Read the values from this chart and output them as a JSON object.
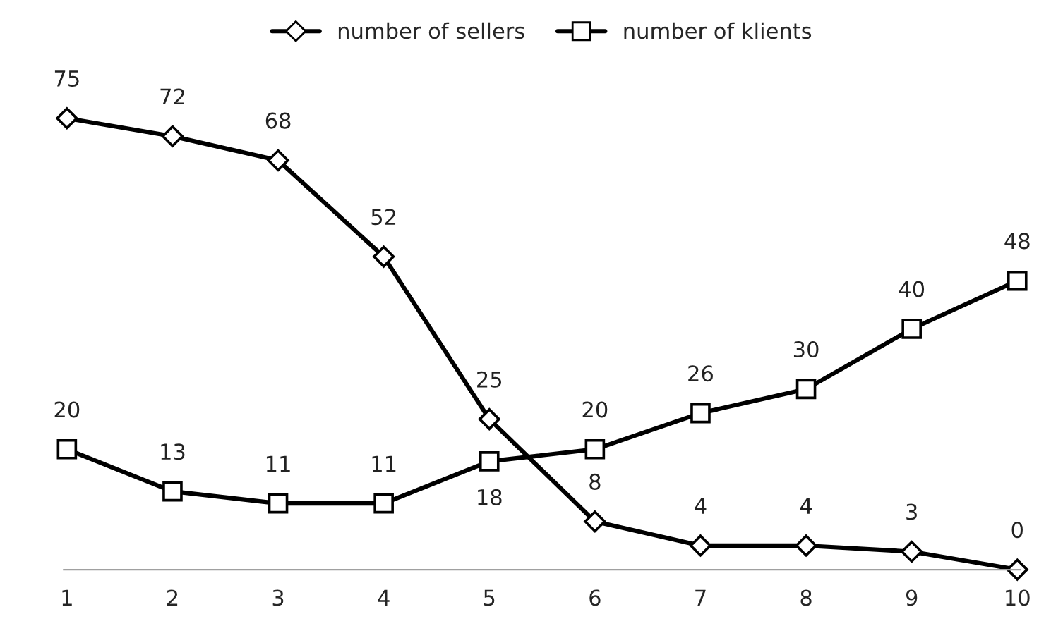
{
  "chart_data": {
    "type": "line",
    "categories": [
      "1",
      "2",
      "3",
      "4",
      "5",
      "6",
      "7",
      "8",
      "9",
      "10"
    ],
    "series": [
      {
        "name": "number of sellers",
        "color": "#000000",
        "marker": "diamond",
        "values": [
          75,
          72,
          68,
          52,
          25,
          8,
          4,
          4,
          3,
          0
        ]
      },
      {
        "name": "number of klients",
        "color": "#000000",
        "marker": "square",
        "values": [
          20,
          13,
          11,
          11,
          18,
          20,
          26,
          30,
          40,
          48
        ]
      }
    ],
    "tick_labels": "x",
    "data_labels": true,
    "legend": "top",
    "line_style": "solid"
  }
}
